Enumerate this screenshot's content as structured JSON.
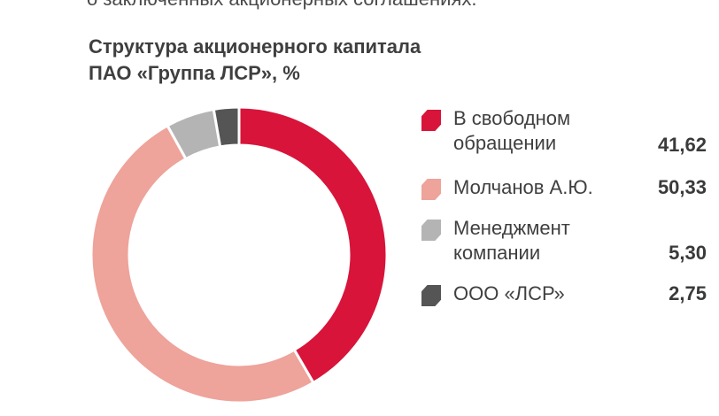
{
  "top_text": "о заключенных акционерных соглашениях.",
  "title_lines": [
    "Структура акционерного капитала",
    "ПАО «Группа ЛСР», %"
  ],
  "chart_data": {
    "type": "pie",
    "title": "Структура акционерного капитала ПАО «Группа ЛСР», %",
    "unit": "%",
    "donut": true,
    "legend_position": "right",
    "slices": [
      {
        "label": "В свободном обращении",
        "label_lines": [
          "В свободном",
          "обращении"
        ],
        "value": 41.62,
        "display": "41,62",
        "color": "#d8143a"
      },
      {
        "label": "Молчанов А.Ю.",
        "label_lines": [
          "Молчанов А.Ю."
        ],
        "value": 50.33,
        "display": "50,33",
        "color": "#eea39b"
      },
      {
        "label": "Менеджмент компании",
        "label_lines": [
          "Менеджмент",
          "компании"
        ],
        "value": 5.3,
        "display": "5,30",
        "color": "#b4b4b4"
      },
      {
        "label": "ООО «ЛСР»",
        "label_lines": [
          "ООО «ЛСР»"
        ],
        "value": 2.75,
        "display": "2,75",
        "color": "#555555"
      }
    ]
  }
}
